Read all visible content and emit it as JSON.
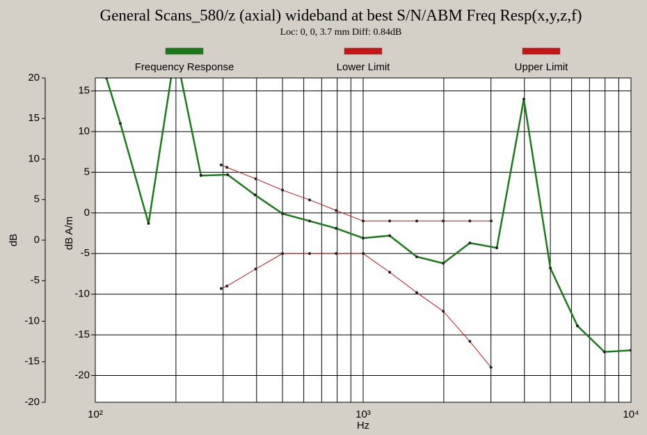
{
  "chart_data": {
    "type": "line",
    "title": "General Scans_580/z (axial) wideband at best S/N/ABM Freq Resp(x,y,z,f)",
    "subtitle": "Loc: 0, 0, 3.7 mm Diff: 0.84dB",
    "x_label": "Hz",
    "y_label": "dB",
    "y2_label": "dB A/m",
    "x_scale": "log",
    "xlim": [
      100,
      10000
    ],
    "xticks": [
      {
        "value": 100,
        "label": "10²"
      },
      {
        "value": 1000,
        "label": "10³"
      },
      {
        "value": 10000,
        "label": "10⁴"
      }
    ],
    "xminorticks": [
      200,
      300,
      400,
      500,
      600,
      700,
      800,
      900,
      2000,
      3000,
      4000,
      5000,
      6000,
      7000,
      8000,
      9000
    ],
    "ylim": [
      -20,
      20
    ],
    "yticks": [
      -20,
      -15,
      -10,
      -5,
      0,
      5,
      10,
      15,
      20
    ],
    "y2lim": [
      -23.3,
      16.6
    ],
    "y2ticks": [
      -20,
      -15,
      -10,
      -5,
      0,
      5,
      10,
      15
    ],
    "grid": true,
    "series": [
      {
        "name": "Frequency Response",
        "color": "#1a7a1a",
        "axis": "y2",
        "x": [
          110,
          124,
          158,
          199,
          248,
          312,
          395,
          500,
          631,
          793,
          1000,
          1256,
          1585,
          1991,
          2502,
          3155,
          3981,
          5000,
          6310,
          7960,
          10000
        ],
        "values": [
          16.6,
          11.0,
          -1.3,
          20,
          4.6,
          4.7,
          2.2,
          -0.1,
          -1.0,
          -1.9,
          -3.1,
          -2.8,
          -5.4,
          -6.2,
          -3.7,
          -4.3,
          14.0,
          -6.8,
          -13.9,
          -17.1,
          -16.9
        ]
      },
      {
        "name": "Lower Limit",
        "color": "#c81414",
        "axis": "y2",
        "x": [
          295,
          310,
          397,
          500,
          631,
          793,
          1000,
          1256,
          1585,
          1991,
          2502,
          3000
        ],
        "values": [
          -9.3,
          -9.0,
          -6.9,
          -5.0,
          -5.0,
          -5.0,
          -5.0,
          -7.3,
          -9.8,
          -12.1,
          -15.8,
          -19.0
        ]
      },
      {
        "name": "Upper Limit",
        "color": "#c81414",
        "axis": "y2",
        "x": [
          295,
          310,
          397,
          500,
          631,
          793,
          1000,
          1256,
          1585,
          1991,
          2502,
          3005
        ],
        "values": [
          5.9,
          5.6,
          4.2,
          2.8,
          1.6,
          0.3,
          -1.0,
          -1.0,
          -1.0,
          -1.0,
          -1.0,
          -1.0
        ]
      }
    ]
  }
}
